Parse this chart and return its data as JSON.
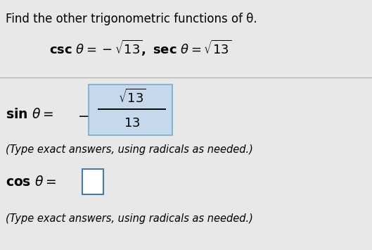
{
  "title_text": "Find the other trigonometric functions of θ.",
  "type_note": "(Type exact answers, using radicals as needed.)",
  "type_note2": "(Type exact answers, using radicals as needed.)",
  "bg_color": "#e8e8e8",
  "highlight_color": "#c5d8ec",
  "highlight_edge": "#7aaace",
  "cos_box_edge": "#4a7aaa",
  "text_color": "#000000",
  "fig_width": 5.29,
  "fig_height": 3.55,
  "dpi": 100
}
